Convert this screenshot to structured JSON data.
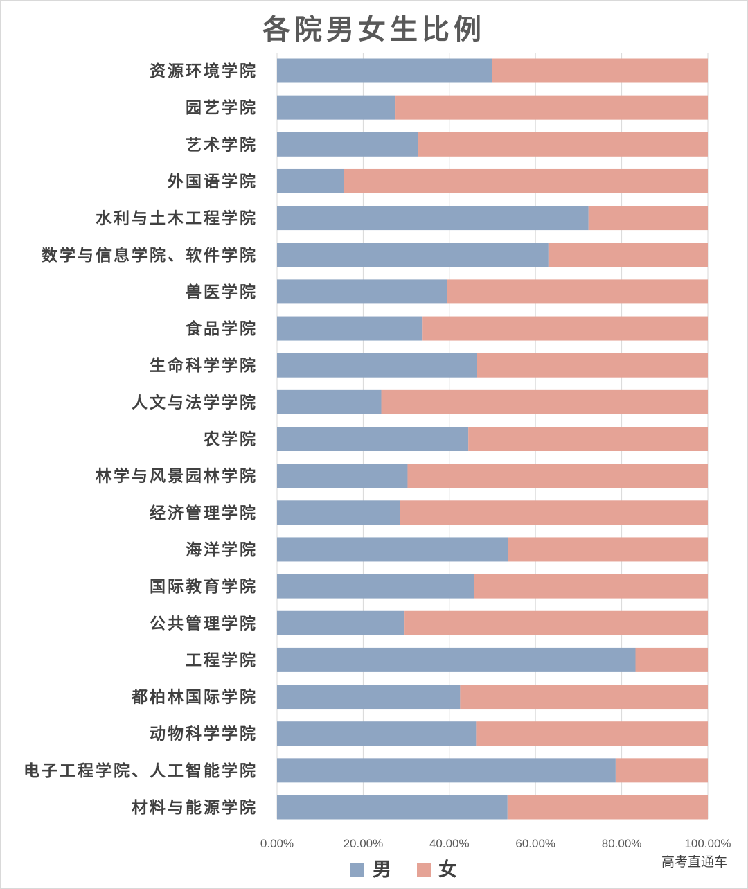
{
  "chart_data": {
    "type": "bar",
    "orientation": "horizontal",
    "stacked": "percent",
    "title": "各院男女生比例",
    "categories": [
      "资源环境学院",
      "园艺学院",
      "艺术学院",
      "外国语学院",
      "水利与土木工程学院",
      "数学与信息学院、软件学院",
      "兽医学院",
      "食品学院",
      "生命科学学院",
      "人文与法学学院",
      "农学院",
      "林学与风景园林学院",
      "经济管理学院",
      "海洋学院",
      "国际教育学院",
      "公共管理学院",
      "工程学院",
      "都柏林国际学院",
      "动物科学学院",
      "电子工程学院、人工智能学院",
      "材料与能源学院"
    ],
    "series": [
      {
        "name": "男",
        "color": "#8ea5c2",
        "values": [
          0.5,
          0.275,
          0.328,
          0.155,
          0.723,
          0.63,
          0.395,
          0.338,
          0.464,
          0.242,
          0.444,
          0.303,
          0.286,
          0.536,
          0.457,
          0.296,
          0.832,
          0.425,
          0.462,
          0.786,
          0.535
        ]
      },
      {
        "name": "女",
        "color": "#e5a396",
        "values": [
          0.5,
          0.725,
          0.672,
          0.845,
          0.277,
          0.37,
          0.605,
          0.662,
          0.536,
          0.758,
          0.556,
          0.697,
          0.714,
          0.464,
          0.543,
          0.704,
          0.168,
          0.575,
          0.538,
          0.214,
          0.465
        ]
      }
    ],
    "xlim": [
      0,
      1
    ],
    "xticks": [
      "0.00%",
      "20.00%",
      "40.00%",
      "60.00%",
      "80.00%",
      "100.00%"
    ],
    "grid": true,
    "legend_position": "bottom"
  },
  "watermark": "高考直通车"
}
